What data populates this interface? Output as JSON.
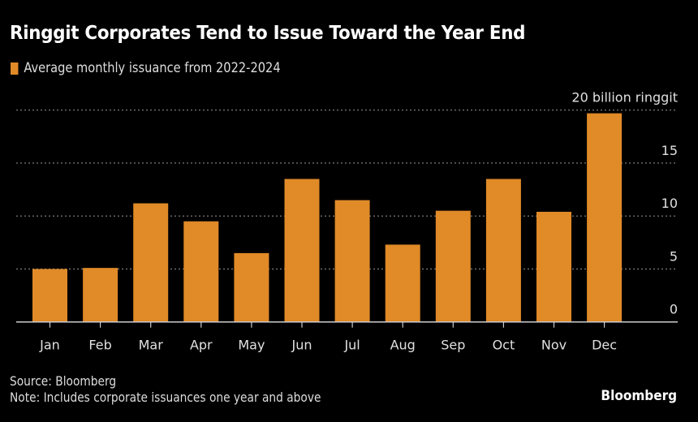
{
  "title": "Ringgit Corporates Tend to Issue Toward the Year End",
  "legend": {
    "label": "Average monthly issuance from 2022-2024",
    "color": "#E08A28"
  },
  "footer": {
    "source": "Source: Bloomberg",
    "note": "Note: Includes corporate issuances one year and above"
  },
  "brand": "Bloomberg",
  "colors": {
    "bar": "#E08A28",
    "background": "#000000",
    "grid": "#888888",
    "axis": "#cccccc"
  },
  "chart_data": {
    "type": "bar",
    "title": "Ringgit Corporates Tend to Issue Toward the Year End",
    "xlabel": "",
    "ylabel": "billion ringgit",
    "categories": [
      "Jan",
      "Feb",
      "Mar",
      "Apr",
      "May",
      "Jun",
      "Jul",
      "Aug",
      "Sep",
      "Oct",
      "Nov",
      "Dec"
    ],
    "series": [
      {
        "name": "Average monthly issuance from 2022-2024",
        "values": [
          5.0,
          5.1,
          11.2,
          9.5,
          6.5,
          13.5,
          11.5,
          7.3,
          10.5,
          13.5,
          10.4,
          19.7
        ]
      }
    ],
    "ylim": [
      0,
      20
    ],
    "yticks": [
      0,
      5,
      10,
      15,
      20
    ],
    "ytick_labels": [
      "0",
      "5",
      "10",
      "15",
      "20 billion ringgit"
    ],
    "y_axis_side": "right",
    "grid": true,
    "legend_position": "top-left"
  }
}
